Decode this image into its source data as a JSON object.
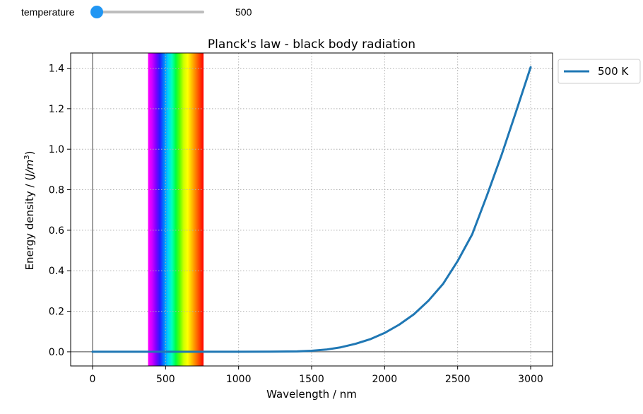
{
  "widget": {
    "label": "temperature",
    "value_text": "500",
    "slider_fraction": 0.0,
    "handle_color": "#2196f3",
    "track_color": "#bdbdbd"
  },
  "chart_data": {
    "type": "line",
    "title": "Planck's law - black body radiation",
    "xlabel": "Wavelength / nm",
    "ylabel_main": "Energy density / (",
    "ylabel_unit": "J/m",
    "ylabel_exp": "3",
    "ylabel_close": ")",
    "xlim": [
      -150,
      3150
    ],
    "ylim": [
      -0.07,
      1.475
    ],
    "xticks": [
      0,
      500,
      1000,
      1500,
      2000,
      2500,
      3000
    ],
    "xtick_labels": [
      "0",
      "500",
      "1000",
      "1500",
      "2000",
      "2500",
      "3000"
    ],
    "yticks": [
      0.0,
      0.2,
      0.4,
      0.6,
      0.8,
      1.0,
      1.2,
      1.4
    ],
    "ytick_labels": [
      "0.0",
      "0.2",
      "0.4",
      "0.6",
      "0.8",
      "1.0",
      "1.2",
      "1.4"
    ],
    "grid": true,
    "legend_location": "outside-top-right",
    "visible_spectrum": {
      "min_nm": 380,
      "max_nm": 760,
      "colors": [
        "#ff00ff",
        "#d000ff",
        "#8000ff",
        "#2020ff",
        "#0080ff",
        "#00d0ff",
        "#00ffc0",
        "#00ff40",
        "#60ff00",
        "#d0ff00",
        "#ffff00",
        "#ffc000",
        "#ff8000",
        "#ff4000",
        "#ff0000"
      ]
    },
    "series": [
      {
        "name": "500 K",
        "color": "#1f77b4",
        "x": [
          0,
          200,
          400,
          600,
          800,
          1000,
          1200,
          1400,
          1500,
          1600,
          1700,
          1800,
          1900,
          2000,
          2100,
          2200,
          2300,
          2400,
          2500,
          2600,
          2700,
          2800,
          2900,
          3000
        ],
        "y": [
          0,
          0,
          0,
          0,
          0,
          0,
          0.0005,
          0.002,
          0.005,
          0.011,
          0.022,
          0.039,
          0.062,
          0.093,
          0.134,
          0.185,
          0.252,
          0.335,
          0.448,
          0.58,
          0.77,
          0.97,
          1.185,
          1.405
        ]
      }
    ]
  }
}
